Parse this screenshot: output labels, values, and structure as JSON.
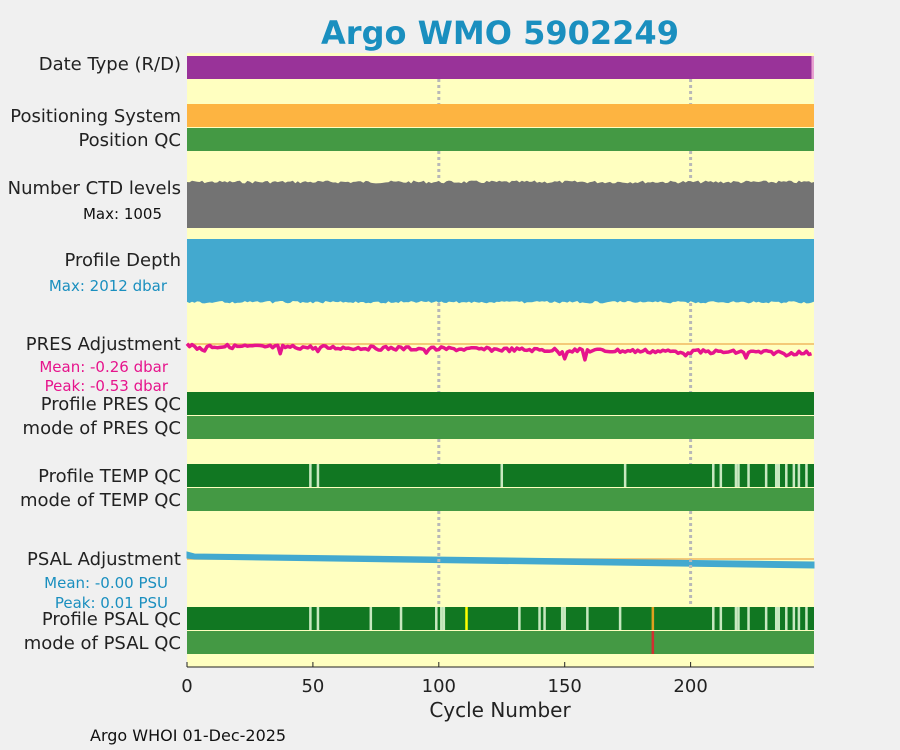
{
  "title": "Argo WMO 5902249",
  "footer": "Argo WHOI 01-Dec-2025",
  "colors": {
    "title": "#1a8fbf",
    "panel_bg": "#ffffc0",
    "purple": "#993399",
    "pink": "#e8a0d0",
    "orange": "#fdb441",
    "green_qc": "#449944",
    "dark_green": "#117722",
    "pale_green": "#c8e8c0",
    "gray": "#737373",
    "blue": "#43a9cf",
    "magenta": "#e6148c",
    "gold": "#f0b860",
    "yellow": "#ffff00",
    "red": "#d03030",
    "dotted": "#b8b8b8",
    "axis_text": "#222222",
    "label_pink": "#e6148c",
    "label_blue": "#1a8fbf"
  },
  "labels": {
    "date_type": "Date Type (R/D)",
    "positioning_system": "Positioning System",
    "position_qc": "Position QC",
    "ctd_levels": "Number CTD levels",
    "ctd_max": "Max: 1005",
    "profile_depth": "Profile Depth",
    "depth_max": "Max: 2012 dbar",
    "pres_adjustment": "PRES Adjustment",
    "pres_mean": "Mean: -0.26 dbar",
    "pres_peak": "Peak: -0.53 dbar",
    "profile_pres_qc": "Profile PRES QC",
    "mode_pres_qc": "mode of PRES QC",
    "profile_temp_qc": "Profile TEMP QC",
    "mode_temp_qc": "mode of TEMP QC",
    "psal_adjustment": "PSAL Adjustment",
    "psal_mean": "Mean: -0.00 PSU",
    "psal_peak": "Peak: 0.01 PSU",
    "profile_psal_qc": "Profile PSAL QC",
    "mode_psal_qc": "mode of PSAL QC"
  },
  "chart_data": {
    "type": "timeline",
    "xlabel": "Cycle Number",
    "xlim": [
      0,
      249
    ],
    "xticks": [
      0,
      50,
      100,
      150,
      200
    ],
    "gridlines_x": [
      100,
      200
    ],
    "n_cycles": 249,
    "date_type": {
      "realtime_until": 248,
      "delayed_from": 248
    },
    "ctd_levels_max": 1005,
    "profile_depth_max_dbar": 2012,
    "pres_adjustment": {
      "mean": -0.26,
      "peak": -0.53
    },
    "psal_adjustment": {
      "mean": -0.0,
      "peak": 0.01
    },
    "temp_qc_pale_cycles": [
      49,
      52,
      125,
      174,
      209,
      212,
      218,
      219,
      223,
      230,
      234,
      235,
      238,
      241,
      243,
      246
    ],
    "psal_qc_pale_cycles": [
      49,
      52,
      73,
      85,
      99,
      101,
      102,
      132,
      140,
      142,
      149,
      150,
      159,
      172,
      209,
      212,
      218,
      219,
      223,
      230,
      234,
      235,
      238,
      241,
      243,
      246
    ],
    "psal_qc_yellow_cycles": [
      111
    ],
    "psal_qc_orange_cycles": [
      185
    ],
    "psal_mode_red_cycles": [
      185
    ]
  }
}
